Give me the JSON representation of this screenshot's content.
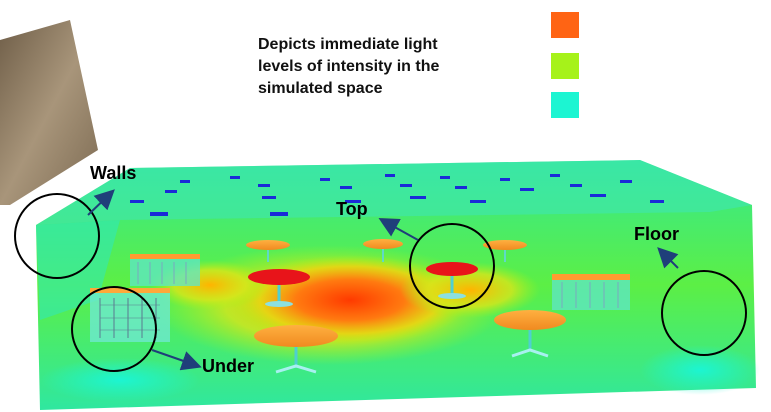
{
  "caption": {
    "lines": [
      "Depicts immediate light",
      "levels of intensity in the",
      "simulated space"
    ]
  },
  "legend": {
    "swatches": [
      {
        "color": "#ff6414"
      },
      {
        "color": "#a6f21a"
      },
      {
        "color": "#1cf5d2"
      }
    ]
  },
  "labels": {
    "walls": "Walls",
    "top": "Top",
    "floor": "Floor",
    "under": "Under"
  },
  "colors": {
    "arrow": "#1f3f7a",
    "circle": "#000000",
    "floor_base": "#22e070",
    "hot": "#ff3a00",
    "wall_panel": "#8c7a62"
  }
}
